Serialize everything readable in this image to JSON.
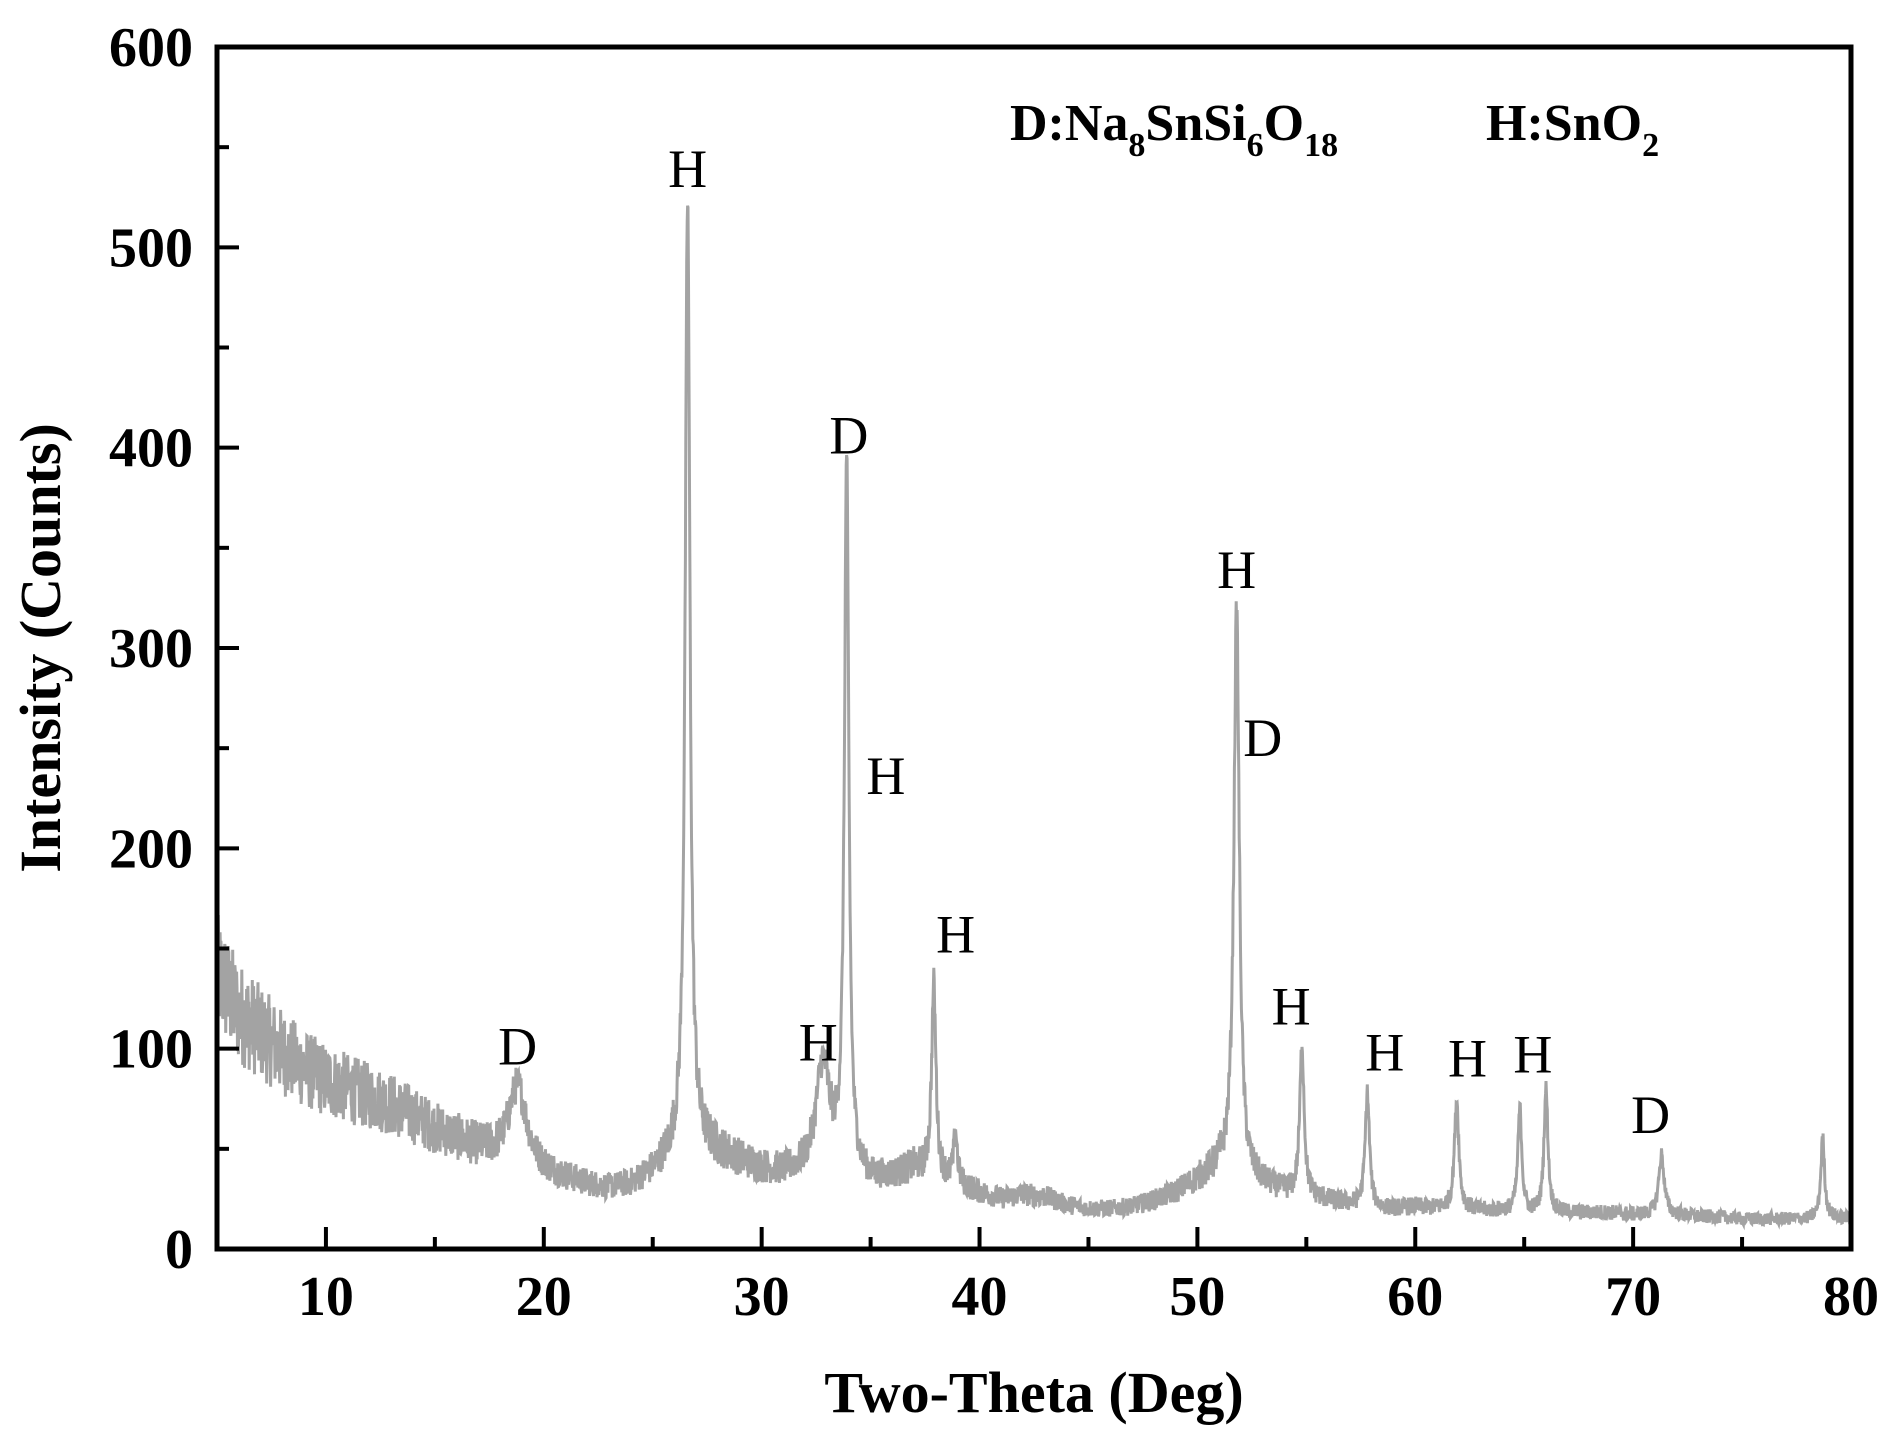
{
  "chart_data": {
    "type": "line",
    "xlabel": "Two-Theta (Deg)",
    "ylabel": "Intensity (Counts)",
    "xlim": [
      5,
      80
    ],
    "ylim": [
      0,
      600
    ],
    "x_ticks": [
      10,
      20,
      30,
      40,
      50,
      60,
      70,
      80
    ],
    "y_ticks": [
      0,
      100,
      200,
      300,
      400,
      500,
      600
    ],
    "grid": false,
    "line_color": "#a3a3a3",
    "legend": [
      {
        "key": "D",
        "formula": [
          {
            "text": "D:Na",
            "sub": false
          },
          {
            "text": "8",
            "sub": true
          },
          {
            "text": "SnSi",
            "sub": false
          },
          {
            "text": "6",
            "sub": true
          },
          {
            "text": "O",
            "sub": false
          },
          {
            "text": "18",
            "sub": true
          }
        ]
      },
      {
        "key": "H",
        "formula": [
          {
            "text": "H:SnO",
            "sub": false
          },
          {
            "text": "2",
            "sub": true
          }
        ]
      }
    ],
    "baseline": [
      [
        5,
        138
      ],
      [
        6,
        118
      ],
      [
        7,
        108
      ],
      [
        8,
        98
      ],
      [
        9,
        90
      ],
      [
        10,
        84
      ],
      [
        11,
        80
      ],
      [
        12,
        76
      ],
      [
        13,
        72
      ],
      [
        14,
        66
      ],
      [
        15,
        60
      ],
      [
        16,
        55
      ],
      [
        17,
        50
      ],
      [
        18,
        46
      ],
      [
        19,
        42
      ],
      [
        20,
        38
      ],
      [
        21,
        35
      ],
      [
        22,
        32
      ],
      [
        23,
        30
      ],
      [
        24,
        32
      ],
      [
        25,
        38
      ],
      [
        26,
        48
      ],
      [
        27,
        52
      ],
      [
        28,
        48
      ],
      [
        29,
        44
      ],
      [
        30,
        40
      ],
      [
        31,
        38
      ],
      [
        32,
        40
      ],
      [
        33,
        44
      ],
      [
        34,
        38
      ],
      [
        35,
        34
      ],
      [
        36,
        36
      ],
      [
        37,
        40
      ],
      [
        38,
        36
      ],
      [
        39,
        32
      ],
      [
        40,
        28
      ],
      [
        41,
        25
      ],
      [
        42,
        27
      ],
      [
        43,
        26
      ],
      [
        44,
        22
      ],
      [
        45,
        20
      ],
      [
        46,
        20
      ],
      [
        47,
        21
      ],
      [
        48,
        24
      ],
      [
        49,
        28
      ],
      [
        50,
        34
      ],
      [
        51,
        40
      ],
      [
        52,
        36
      ],
      [
        53,
        32
      ],
      [
        54,
        28
      ],
      [
        55,
        26
      ],
      [
        56,
        24
      ],
      [
        57,
        22
      ],
      [
        58,
        20
      ],
      [
        59,
        20
      ],
      [
        60,
        21
      ],
      [
        61,
        20
      ],
      [
        62,
        20
      ],
      [
        63,
        19
      ],
      [
        64,
        19
      ],
      [
        65,
        18
      ],
      [
        66,
        18
      ],
      [
        67,
        18
      ],
      [
        68,
        18
      ],
      [
        69,
        18
      ],
      [
        70,
        17
      ],
      [
        71,
        17
      ],
      [
        72,
        17
      ],
      [
        73,
        16
      ],
      [
        74,
        16
      ],
      [
        75,
        15
      ],
      [
        76,
        15
      ],
      [
        77,
        15
      ],
      [
        78,
        15
      ],
      [
        79,
        16
      ],
      [
        80,
        15
      ]
    ],
    "peaks": [
      {
        "x": 18.8,
        "height": 82,
        "width": 0.5
      },
      {
        "x": 26.6,
        "height": 525,
        "width": 0.13
      },
      {
        "x": 32.8,
        "height": 92,
        "width": 0.35
      },
      {
        "x": 33.9,
        "height": 394,
        "width": 0.12
      },
      {
        "x": 37.9,
        "height": 132,
        "width": 0.12
      },
      {
        "x": 38.9,
        "height": 58,
        "width": 0.1
      },
      {
        "x": 51.8,
        "height": 320,
        "width": 0.15
      },
      {
        "x": 54.8,
        "height": 102,
        "width": 0.12
      },
      {
        "x": 57.8,
        "height": 78,
        "width": 0.12
      },
      {
        "x": 61.9,
        "height": 75,
        "width": 0.12
      },
      {
        "x": 64.8,
        "height": 70,
        "width": 0.11
      },
      {
        "x": 66.0,
        "height": 80,
        "width": 0.11
      },
      {
        "x": 71.3,
        "height": 47,
        "width": 0.15
      },
      {
        "x": 78.7,
        "height": 56,
        "width": 0.1
      }
    ],
    "noise_amplitude": 0.22,
    "annotations": [
      {
        "text": "D",
        "x": 18.8,
        "y": 92
      },
      {
        "text": "H",
        "x": 26.6,
        "y": 530
      },
      {
        "text": "H",
        "x": 32.6,
        "y": 94
      },
      {
        "text": "D",
        "x": 34.0,
        "y": 397
      },
      {
        "text": "H",
        "x": 35.7,
        "y": 227
      },
      {
        "text": "H",
        "x": 38.9,
        "y": 148
      },
      {
        "text": "H",
        "x": 51.8,
        "y": 330
      },
      {
        "text": "D",
        "x": 53.0,
        "y": 246
      },
      {
        "text": "H",
        "x": 54.3,
        "y": 112
      },
      {
        "text": "H",
        "x": 58.6,
        "y": 89
      },
      {
        "text": "H",
        "x": 62.4,
        "y": 86
      },
      {
        "text": "H",
        "x": 65.4,
        "y": 88
      },
      {
        "text": "D",
        "x": 70.8,
        "y": 58
      }
    ]
  }
}
